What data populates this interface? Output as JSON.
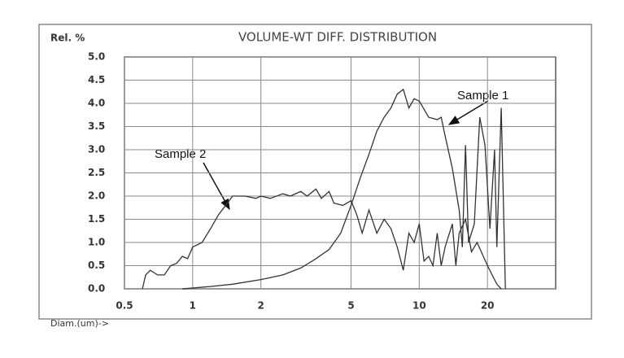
{
  "chart_data": {
    "type": "line",
    "title": "VOLUME-WT DIFF. DISTRIBUTION",
    "y_label": "Rel. %",
    "x_label": "Diam.(um)->",
    "xscale": "log",
    "grid": true,
    "xlim": [
      0.5,
      40
    ],
    "xticks": [
      0.5,
      1,
      2,
      5,
      10,
      20
    ],
    "ylim": [
      0,
      5
    ],
    "yticks": [
      {
        "value": 0,
        "label": "0.0"
      },
      0.5,
      {
        "value": 1,
        "label": "1.0"
      },
      1.5,
      {
        "value": 2,
        "label": "2.0"
      },
      2.5,
      {
        "value": 3,
        "label": "3.0"
      },
      3.5,
      {
        "value": 4,
        "label": "4.0"
      },
      4.5,
      {
        "value": 5,
        "label": "5.0"
      }
    ],
    "series": [
      {
        "name": "Sample 1",
        "color": "#333333",
        "x": [
          0.9,
          1.2,
          1.5,
          2.0,
          2.5,
          3.0,
          3.5,
          4.0,
          4.5,
          5.0,
          5.5,
          6.0,
          6.5,
          7.0,
          7.5,
          8.0,
          8.5,
          9.0,
          9.5,
          10.0,
          11.0,
          12.0,
          12.5,
          13.0,
          14.0,
          15.0,
          15.5,
          16.0,
          16.5,
          17.5,
          18.5,
          19.5,
          20.5,
          21.5,
          22.0,
          23.0,
          24.0
        ],
        "values": [
          0.0,
          0.05,
          0.1,
          0.2,
          0.3,
          0.45,
          0.65,
          0.85,
          1.2,
          1.8,
          2.4,
          2.9,
          3.4,
          3.7,
          3.9,
          4.2,
          4.3,
          3.9,
          4.1,
          4.05,
          3.7,
          3.65,
          3.7,
          3.3,
          2.6,
          1.7,
          0.9,
          3.1,
          1.0,
          1.4,
          3.7,
          3.1,
          1.3,
          3.0,
          0.9,
          3.9,
          0.0
        ]
      },
      {
        "name": "Sample 2",
        "color": "#333333",
        "x": [
          0.6,
          0.62,
          0.65,
          0.7,
          0.75,
          0.8,
          0.85,
          0.9,
          0.95,
          1.0,
          1.1,
          1.2,
          1.3,
          1.4,
          1.5,
          1.7,
          1.9,
          2.0,
          2.2,
          2.5,
          2.7,
          3.0,
          3.2,
          3.5,
          3.7,
          4.0,
          4.2,
          4.6,
          5.0,
          5.3,
          5.6,
          6.0,
          6.5,
          7.0,
          7.5,
          8.0,
          8.5,
          9.0,
          9.5,
          10.0,
          10.5,
          11.0,
          11.5,
          12.0,
          12.5,
          13.0,
          14.0,
          14.5,
          15.0,
          16.0,
          17.0,
          18.0,
          20.0,
          22.0,
          23.0
        ],
        "values": [
          0.0,
          0.3,
          0.4,
          0.3,
          0.3,
          0.5,
          0.55,
          0.7,
          0.65,
          0.9,
          1.0,
          1.3,
          1.6,
          1.8,
          2.0,
          2.0,
          1.95,
          2.0,
          1.95,
          2.05,
          2.0,
          2.1,
          2.0,
          2.15,
          1.95,
          2.1,
          1.85,
          1.8,
          1.9,
          1.6,
          1.2,
          1.7,
          1.2,
          1.5,
          1.3,
          0.9,
          0.4,
          1.2,
          1.0,
          1.4,
          0.6,
          0.7,
          0.5,
          1.2,
          0.5,
          0.9,
          1.4,
          0.5,
          1.2,
          1.5,
          0.8,
          1.0,
          0.5,
          0.1,
          0.0
        ]
      }
    ]
  }
}
